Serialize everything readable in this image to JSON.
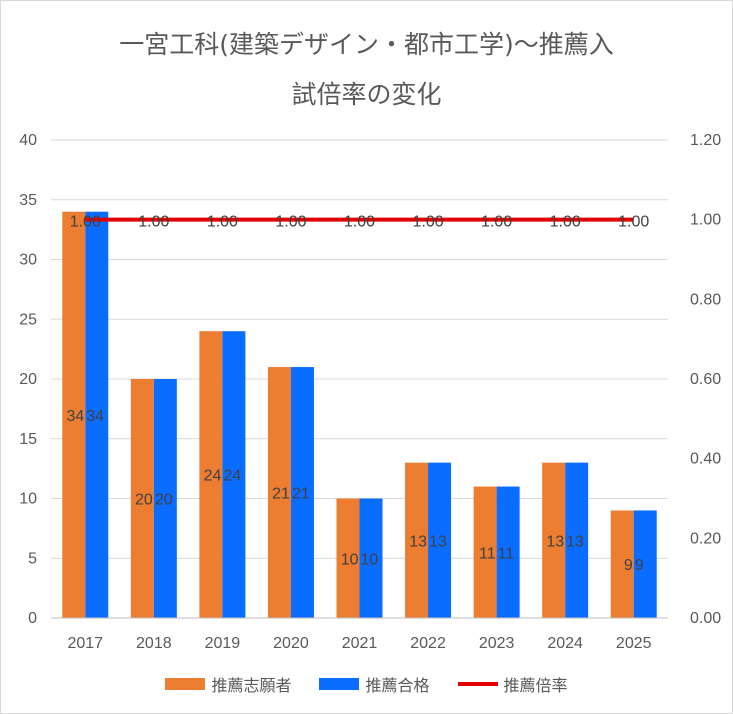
{
  "chart_data": {
    "type": "bar",
    "title_line1": "一宮工科(建築デザイン・都市工学)～推薦入",
    "title_line2": "試倍率の変化",
    "categories": [
      "2017",
      "2018",
      "2019",
      "2020",
      "2021",
      "2022",
      "2023",
      "2024",
      "2025"
    ],
    "series": [
      {
        "name": "推薦志願者",
        "type": "bar",
        "axis": "left",
        "color": "#ED7D31",
        "values": [
          34,
          20,
          24,
          21,
          10,
          13,
          11,
          13,
          9
        ]
      },
      {
        "name": "推薦合格",
        "type": "bar",
        "axis": "left",
        "color": "#0A6DFF",
        "values": [
          34,
          20,
          24,
          21,
          10,
          13,
          11,
          13,
          9
        ]
      },
      {
        "name": "推薦倍率",
        "type": "line",
        "axis": "right",
        "color": "#E00000",
        "values": [
          1.0,
          1.0,
          1.0,
          1.0,
          1.0,
          1.0,
          1.0,
          1.0,
          1.0
        ],
        "labels": [
          "1.00",
          "1.00",
          "1.00",
          "1.00",
          "1.00",
          "1.00",
          "1.00",
          "1.00",
          "1.00"
        ]
      }
    ],
    "y_left": {
      "min": 0,
      "max": 40,
      "step": 5,
      "ticks": [
        "0",
        "5",
        "10",
        "15",
        "20",
        "25",
        "30",
        "35",
        "40"
      ]
    },
    "y_right": {
      "min": 0,
      "max": 1.2,
      "step": 0.2,
      "ticks": [
        "0.00",
        "0.20",
        "0.40",
        "0.60",
        "0.80",
        "1.00",
        "1.20"
      ]
    },
    "grid": true,
    "legend_position": "bottom"
  }
}
